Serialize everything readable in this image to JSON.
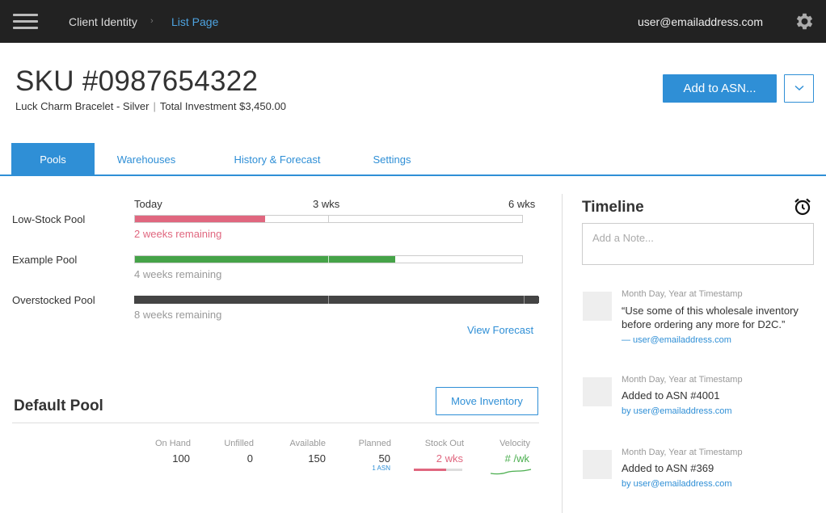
{
  "topbar": {
    "menu_icon": "hamburger-menu-icon",
    "breadcrumb": [
      "Client Identity",
      "List Page"
    ],
    "breadcrumb_separator": "›",
    "user_email": "user@emailaddress.com",
    "settings_icon": "gear-icon"
  },
  "header": {
    "sku_title": "SKU #0987654322",
    "product_name": "Luck Charm Bracelet - Silver",
    "separator": "|",
    "total_investment": "Total Investment $3,450.00",
    "add_button": "Add to ASN...",
    "dropdown_icon": "chevron-down-icon"
  },
  "tabs": [
    "Pools",
    "Warehouses",
    "History & Forecast",
    "Settings"
  ],
  "active_tab": 0,
  "pools": {
    "scale_labels": [
      "Today",
      "3 wks",
      "6 wks"
    ],
    "items": [
      {
        "name": "Low-Stock Pool",
        "remaining": "2 weeks remaining",
        "weeks": 2,
        "color": "#e0677f"
      },
      {
        "name": "Example Pool",
        "remaining": "4 weeks remaining",
        "weeks": 4,
        "color": "#45a348"
      },
      {
        "name": "Overstocked Pool",
        "remaining": "8 weeks remaining",
        "weeks": 8,
        "color": "#444444"
      }
    ],
    "view_forecast": "View Forecast"
  },
  "default_pool": {
    "title": "Default Pool",
    "move_button": "Move Inventory",
    "stats": [
      {
        "label": "On Hand",
        "value": "100"
      },
      {
        "label": "Unfilled",
        "value": "0"
      },
      {
        "label": "Available",
        "value": "150"
      },
      {
        "label": "Planned",
        "value": "50",
        "sub": "1 ASN"
      },
      {
        "label": "Stock Out",
        "value": "2 wks",
        "fraction": 0.67
      },
      {
        "label": "Velocity",
        "value": "# /wk"
      }
    ]
  },
  "timeline": {
    "title": "Timeline",
    "alarm_icon": "alarm-clock-icon",
    "note_placeholder": "Add a Note...",
    "entries": [
      {
        "timestamp": "Month Day, Year at Timestamp",
        "text": "“Use some of this wholesale inventory before ordering any more for D2C.”",
        "by": "— user@emailaddress.com"
      },
      {
        "timestamp": "Month Day, Year at Timestamp",
        "text": "Added to ASN #4001",
        "by": "by user@emailaddress.com"
      },
      {
        "timestamp": "Month Day, Year at Timestamp",
        "text": "Added to ASN #369",
        "by": "by user@emailaddress.com"
      }
    ]
  },
  "colors": {
    "accent": "#2f8fd6",
    "danger": "#e0677f",
    "success": "#45a348",
    "topbar": "#222222"
  }
}
